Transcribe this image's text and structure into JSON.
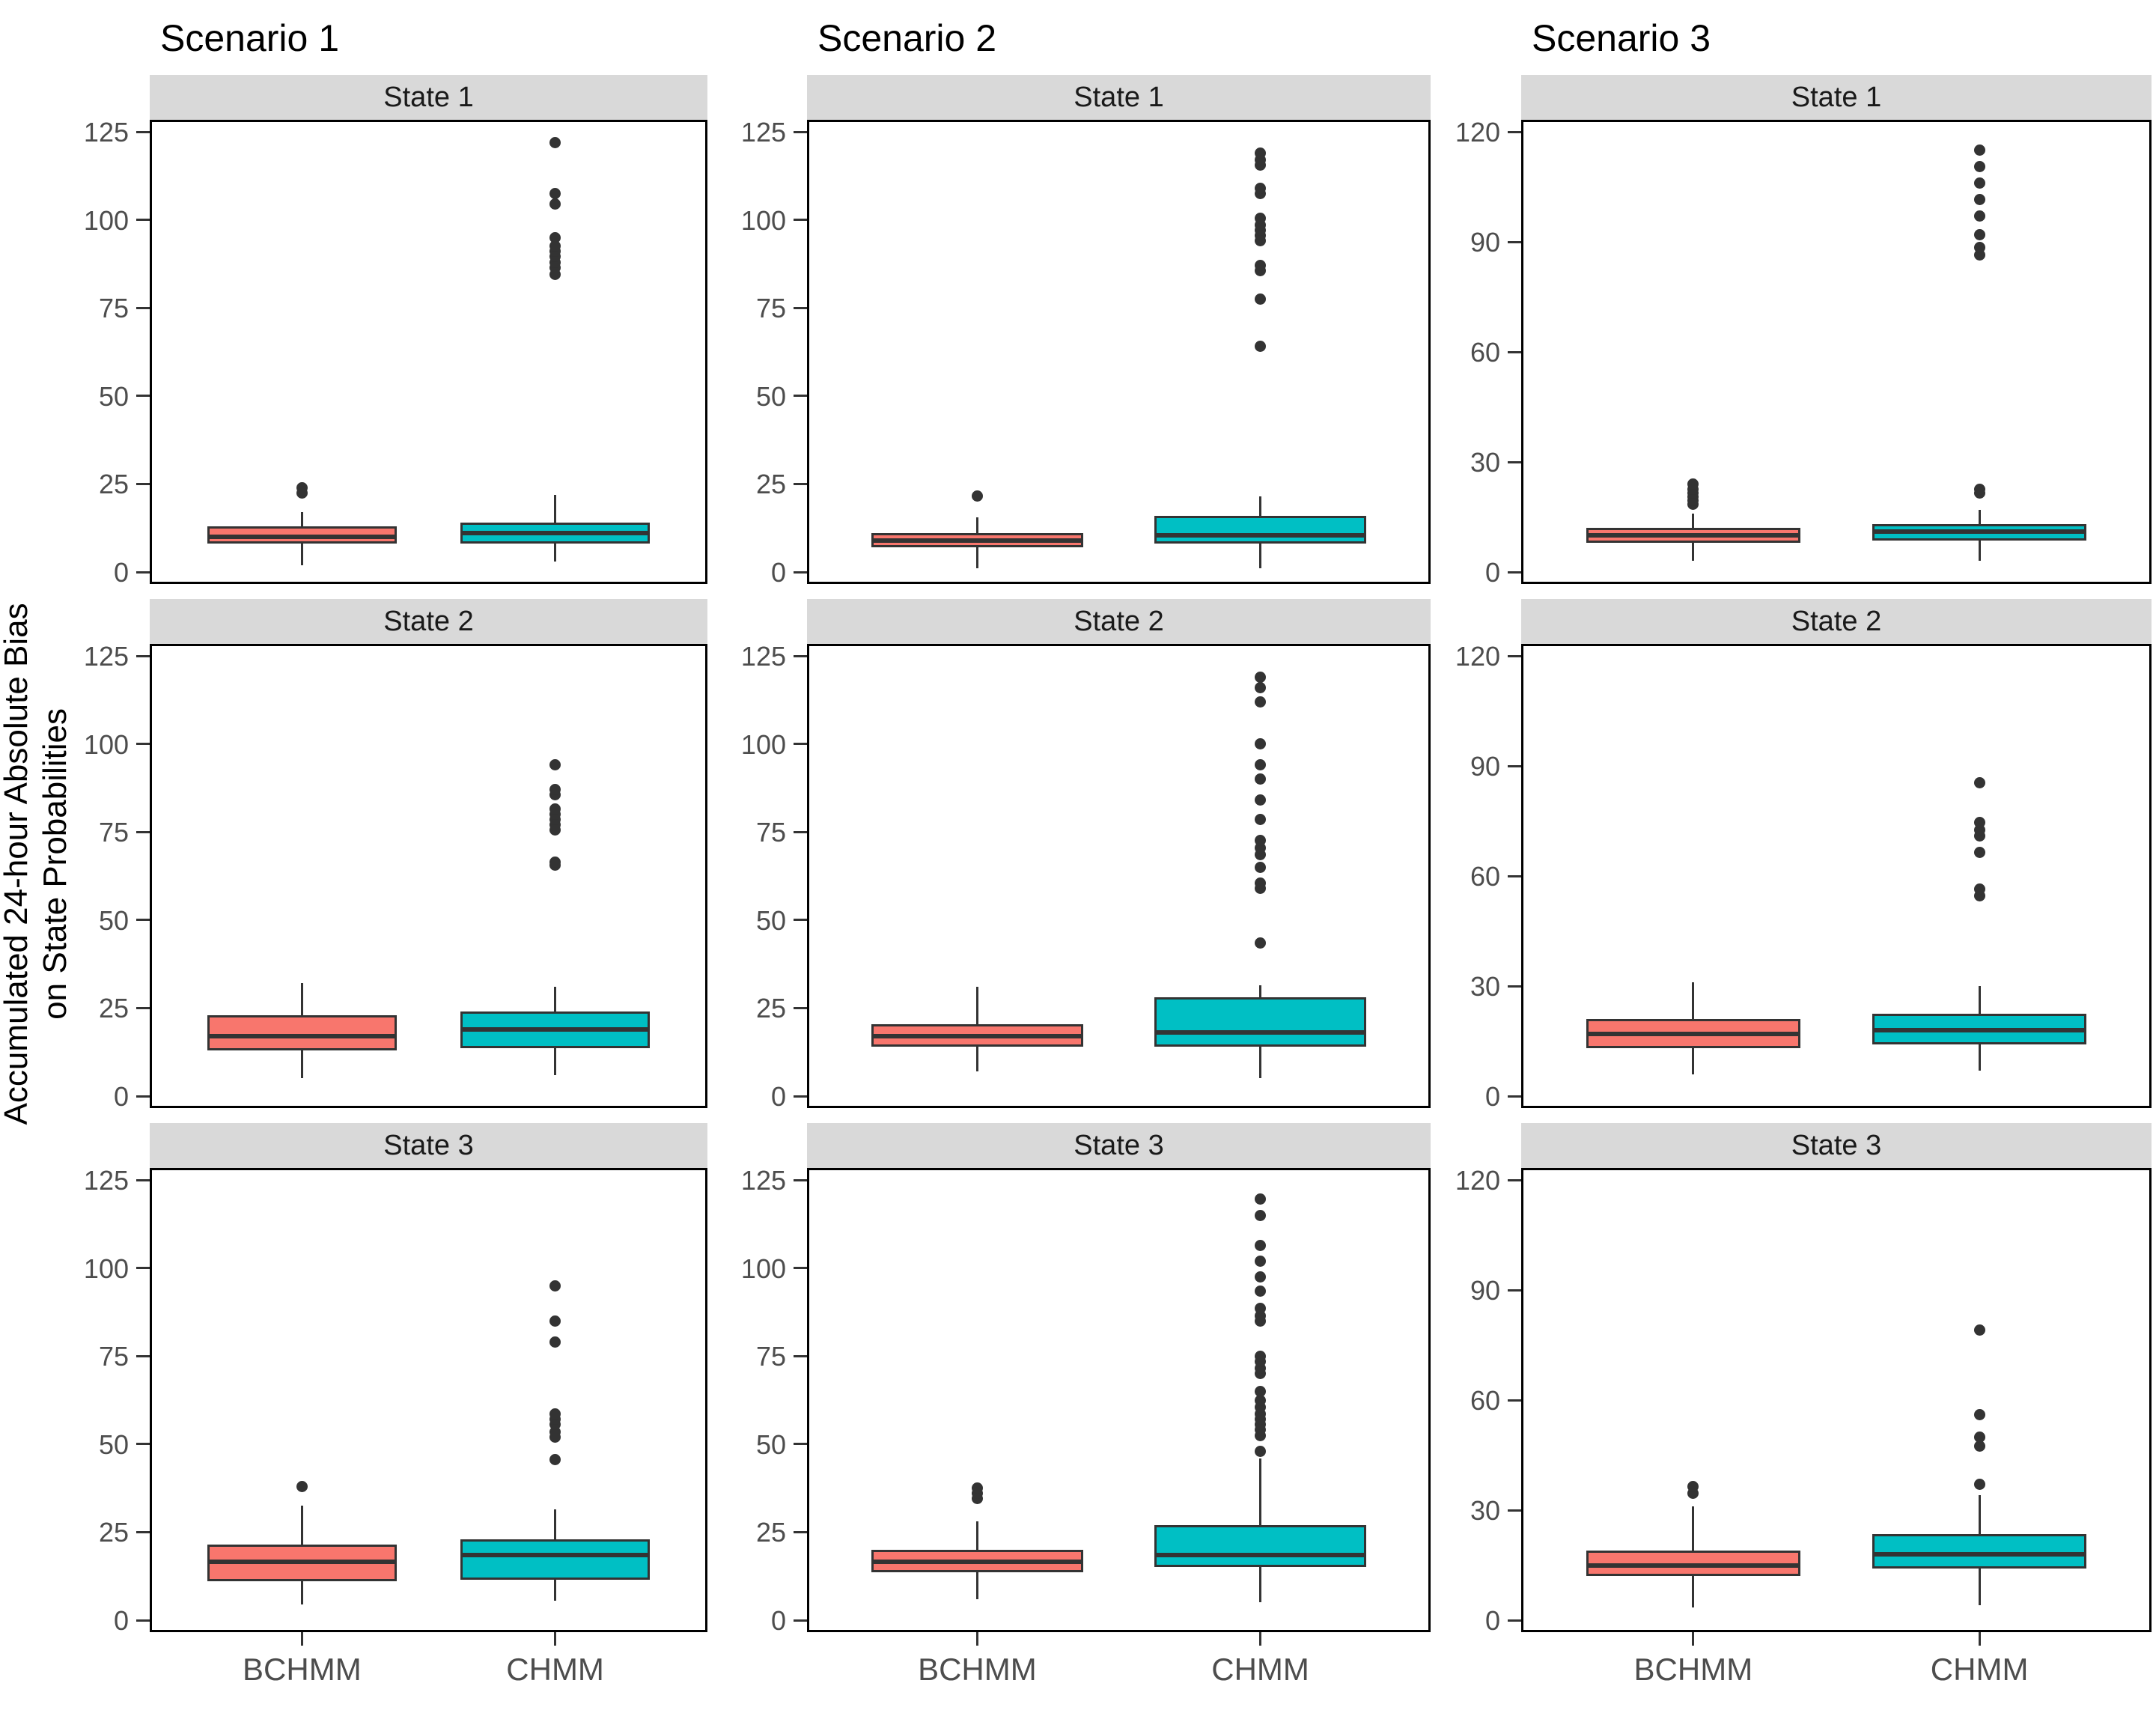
{
  "figure": {
    "ylab": "Accumulated 24-hour Absolute Bias\non State Probabilities",
    "x_categories": [
      "BCHMM",
      "CHMM"
    ],
    "colors": {
      "BCHMM": "#F8766D",
      "CHMM": "#00BFC4",
      "box_outline": "#333333",
      "strip_bg": "#D9D9D9",
      "axis_text": "#4D4D4D"
    }
  },
  "chart_data": [
    {
      "type": "boxplot",
      "title": "Scenario 1",
      "ylim": [
        0,
        125
      ],
      "y_ticks": [
        0,
        25,
        50,
        75,
        100,
        125
      ],
      "x_categories": [
        "BCHMM",
        "CHMM"
      ],
      "legend_position": "none",
      "grid": false,
      "facets": [
        {
          "label": "State 1",
          "boxes": [
            {
              "group": "BCHMM",
              "whisker_low": 2,
              "q1": 8,
              "median": 10,
              "q3": 13,
              "whisker_high": 17,
              "outliers": [
                22.5,
                24
              ]
            },
            {
              "group": "CHMM",
              "whisker_low": 3,
              "q1": 8,
              "median": 11,
              "q3": 14,
              "whisker_high": 22,
              "outliers": [
                84.5,
                86.5,
                88,
                89.5,
                91,
                92.5,
                95,
                104.5,
                107.5,
                122
              ]
            }
          ]
        },
        {
          "label": "State 2",
          "boxes": [
            {
              "group": "BCHMM",
              "whisker_low": 5,
              "q1": 13,
              "median": 17,
              "q3": 23,
              "whisker_high": 32,
              "outliers": []
            },
            {
              "group": "CHMM",
              "whisker_low": 6,
              "q1": 13.5,
              "median": 19,
              "q3": 24,
              "whisker_high": 31,
              "outliers": [
                65.5,
                66.5,
                75.5,
                77,
                78.5,
                80,
                81.5,
                85.5,
                87,
                94
              ]
            }
          ]
        },
        {
          "label": "State 3",
          "boxes": [
            {
              "group": "BCHMM",
              "whisker_low": 4.5,
              "q1": 11,
              "median": 16.5,
              "q3": 21.5,
              "whisker_high": 32.5,
              "outliers": [
                38
              ]
            },
            {
              "group": "CHMM",
              "whisker_low": 5.5,
              "q1": 11.5,
              "median": 18.5,
              "q3": 23,
              "whisker_high": 31.5,
              "outliers": [
                45.5,
                52,
                53.5,
                55.5,
                57,
                58.5,
                79,
                85,
                95
              ]
            }
          ]
        }
      ]
    },
    {
      "type": "boxplot",
      "title": "Scenario 2",
      "ylim": [
        0,
        125
      ],
      "y_ticks": [
        0,
        25,
        50,
        75,
        100,
        125
      ],
      "x_categories": [
        "BCHMM",
        "CHMM"
      ],
      "legend_position": "none",
      "grid": false,
      "facets": [
        {
          "label": "State 1",
          "boxes": [
            {
              "group": "BCHMM",
              "whisker_low": 1,
              "q1": 7,
              "median": 9,
              "q3": 11,
              "whisker_high": 15.5,
              "outliers": [
                21.5
              ]
            },
            {
              "group": "CHMM",
              "whisker_low": 1,
              "q1": 8,
              "median": 10.5,
              "q3": 16,
              "whisker_high": 21.5,
              "outliers": [
                64,
                77.5,
                85.5,
                87,
                94,
                95.5,
                97,
                98.5,
                100.5,
                107.5,
                109,
                115.5,
                117,
                119
              ]
            }
          ]
        },
        {
          "label": "State 2",
          "boxes": [
            {
              "group": "BCHMM",
              "whisker_low": 7,
              "q1": 14,
              "median": 17,
              "q3": 20.5,
              "whisker_high": 31,
              "outliers": []
            },
            {
              "group": "CHMM",
              "whisker_low": 5,
              "q1": 14,
              "median": 18,
              "q3": 28,
              "whisker_high": 31.5,
              "outliers": [
                43.5,
                59,
                60.5,
                65,
                68.5,
                70.5,
                72.5,
                78.5,
                84,
                90,
                94,
                100,
                112,
                116,
                119
              ]
            }
          ]
        },
        {
          "label": "State 3",
          "boxes": [
            {
              "group": "BCHMM",
              "whisker_low": 6,
              "q1": 13.5,
              "median": 16.5,
              "q3": 20,
              "whisker_high": 28,
              "outliers": [
                34.5,
                36,
                37.5
              ]
            },
            {
              "group": "CHMM",
              "whisker_low": 5,
              "q1": 15,
              "median": 18.5,
              "q3": 27,
              "whisker_high": 46,
              "outliers": [
                48,
                52.5,
                54,
                55.5,
                57,
                58.5,
                60.5,
                62.5,
                65,
                70,
                71.5,
                73.5,
                75,
                85,
                86.5,
                88.5,
                93.5,
                97.5,
                102,
                106.5,
                115,
                119.5
              ]
            }
          ]
        }
      ]
    },
    {
      "type": "boxplot",
      "title": "Scenario 3",
      "ylim": [
        0,
        120
      ],
      "y_ticks": [
        0,
        30,
        60,
        90,
        120
      ],
      "x_categories": [
        "BCHMM",
        "CHMM"
      ],
      "legend_position": "none",
      "grid": false,
      "facets": [
        {
          "label": "State 1",
          "boxes": [
            {
              "group": "BCHMM",
              "whisker_low": 3,
              "q1": 8,
              "median": 10,
              "q3": 12,
              "whisker_high": 16,
              "outliers": [
                18.5,
                19.5,
                20.5,
                21.5,
                22.5,
                24
              ]
            },
            {
              "group": "CHMM",
              "whisker_low": 3,
              "q1": 8.5,
              "median": 11,
              "q3": 13,
              "whisker_high": 17,
              "outliers": [
                21.5,
                22.5,
                86.5,
                88.5,
                92,
                97,
                101.5,
                106,
                110.5,
                115
              ]
            }
          ]
        },
        {
          "label": "State 2",
          "boxes": [
            {
              "group": "BCHMM",
              "whisker_low": 6,
              "q1": 13,
              "median": 17,
              "q3": 21,
              "whisker_high": 31,
              "outliers": []
            },
            {
              "group": "CHMM",
              "whisker_low": 7,
              "q1": 14,
              "median": 18,
              "q3": 22.5,
              "whisker_high": 30,
              "outliers": [
                54.5,
                56.5,
                66.5,
                71,
                72.5,
                74.5,
                85.5
              ]
            }
          ]
        },
        {
          "label": "State 3",
          "boxes": [
            {
              "group": "BCHMM",
              "whisker_low": 3.5,
              "q1": 12,
              "median": 15,
              "q3": 19,
              "whisker_high": 31,
              "outliers": [
                34.5,
                36.5
              ]
            },
            {
              "group": "CHMM",
              "whisker_low": 4,
              "q1": 14,
              "median": 18,
              "q3": 23.5,
              "whisker_high": 34,
              "outliers": [
                37,
                47.5,
                50,
                56,
                79
              ]
            }
          ]
        }
      ]
    }
  ]
}
